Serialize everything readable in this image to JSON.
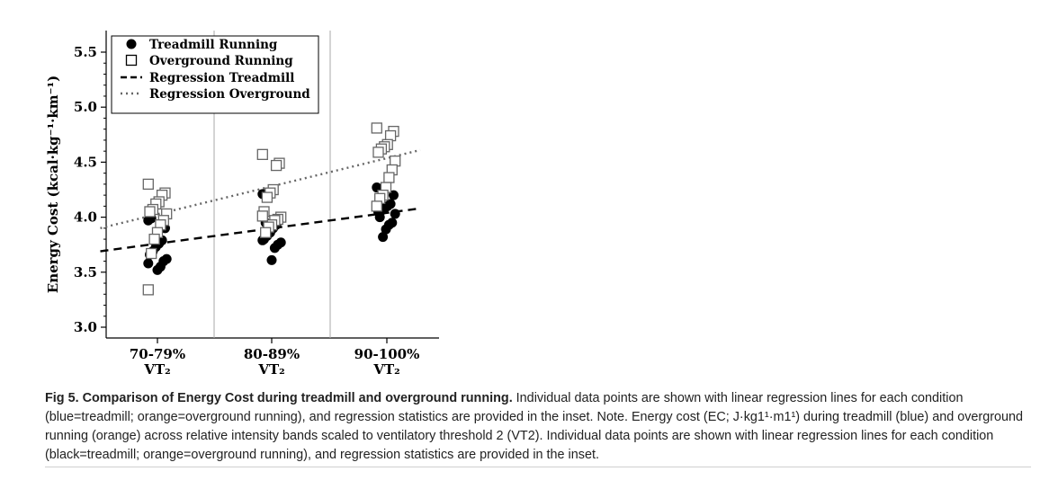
{
  "chart_data": {
    "type": "scatter",
    "ylabel": "Energy Cost (kcal·kg⁻¹·km⁻¹)",
    "xlabel": "",
    "ylim": [
      3.0,
      5.5
    ],
    "yticks": [
      "3.0",
      "3.5",
      "4.0",
      "4.5",
      "5.0",
      "5.5"
    ],
    "categories": [
      {
        "line1": "70-79%",
        "line2": "VT₂"
      },
      {
        "line1": "80-89%",
        "line2": "VT₂"
      },
      {
        "line1": "90-100%",
        "line2": "VT₂"
      }
    ],
    "legend": {
      "position": "top-left",
      "entries": [
        "Treadmill Running",
        "Overground Running",
        "Regression Treadmill",
        "Regression Overground"
      ]
    },
    "grid": false,
    "category_dividers": true,
    "series": [
      {
        "name": "Treadmill Running",
        "marker": "filled-circle",
        "color": "#000000",
        "points": [
          [
            0,
            3.97
          ],
          [
            0,
            3.9
          ],
          [
            0,
            3.79
          ],
          [
            0,
            3.76
          ],
          [
            0,
            3.73
          ],
          [
            0,
            3.69
          ],
          [
            0,
            3.66
          ],
          [
            0,
            3.62
          ],
          [
            0,
            3.6
          ],
          [
            0,
            3.55
          ],
          [
            0,
            3.52
          ],
          [
            0,
            3.8
          ],
          [
            0,
            3.99
          ],
          [
            0,
            3.58
          ]
        ]
      },
      {
        "name": "Overground Running",
        "marker": "open-square",
        "color": "#000000",
        "points": [
          [
            0,
            4.3
          ],
          [
            0,
            4.22
          ],
          [
            0,
            4.2
          ],
          [
            0,
            4.14
          ],
          [
            0,
            4.12
          ],
          [
            0,
            4.07
          ],
          [
            0,
            4.05
          ],
          [
            0,
            4.03
          ],
          [
            0,
            3.97
          ],
          [
            0,
            3.93
          ],
          [
            0,
            3.86
          ],
          [
            0,
            3.8
          ],
          [
            0,
            3.67
          ],
          [
            0,
            3.34
          ]
        ]
      },
      {
        "name": "Treadmill Running",
        "marker": "filled-circle",
        "color": "#000000",
        "points": [
          [
            1,
            4.21
          ],
          [
            1,
            3.98
          ],
          [
            1,
            3.93
          ],
          [
            1,
            3.9
          ],
          [
            1,
            3.86
          ],
          [
            1,
            3.83
          ],
          [
            1,
            3.8
          ],
          [
            1,
            3.77
          ],
          [
            1,
            3.75
          ],
          [
            1,
            3.72
          ],
          [
            1,
            3.61
          ],
          [
            1,
            3.88
          ],
          [
            1,
            3.95
          ],
          [
            1,
            3.79
          ]
        ]
      },
      {
        "name": "Overground Running",
        "marker": "open-square",
        "color": "#000000",
        "points": [
          [
            1,
            4.57
          ],
          [
            1,
            4.49
          ],
          [
            1,
            4.47
          ],
          [
            1,
            4.25
          ],
          [
            1,
            4.22
          ],
          [
            1,
            4.18
          ],
          [
            1,
            4.05
          ],
          [
            1,
            4.0
          ],
          [
            1,
            3.98
          ],
          [
            1,
            3.97
          ],
          [
            1,
            3.93
          ],
          [
            1,
            3.91
          ],
          [
            1,
            3.86
          ],
          [
            1,
            4.01
          ]
        ]
      },
      {
        "name": "Treadmill Running",
        "marker": "filled-circle",
        "color": "#000000",
        "points": [
          [
            2,
            4.27
          ],
          [
            2,
            4.2
          ],
          [
            2,
            4.12
          ],
          [
            2,
            4.1
          ],
          [
            2,
            4.08
          ],
          [
            2,
            4.06
          ],
          [
            2,
            4.05
          ],
          [
            2,
            4.03
          ],
          [
            2,
            3.95
          ],
          [
            2,
            3.93
          ],
          [
            2,
            3.89
          ],
          [
            2,
            3.82
          ],
          [
            2,
            4.0
          ],
          [
            2,
            4.09
          ]
        ]
      },
      {
        "name": "Overground Running",
        "marker": "open-square",
        "color": "#000000",
        "points": [
          [
            2,
            4.81
          ],
          [
            2,
            4.78
          ],
          [
            2,
            4.74
          ],
          [
            2,
            4.66
          ],
          [
            2,
            4.64
          ],
          [
            2,
            4.62
          ],
          [
            2,
            4.59
          ],
          [
            2,
            4.51
          ],
          [
            2,
            4.43
          ],
          [
            2,
            4.36
          ],
          [
            2,
            4.27
          ],
          [
            2,
            4.2
          ],
          [
            2,
            4.17
          ],
          [
            2,
            4.1
          ]
        ]
      }
    ],
    "regressions": [
      {
        "name": "Regression Treadmill",
        "style": "dashed",
        "x": [
          -0.5,
          2.3
        ],
        "y": [
          3.69,
          4.08
        ]
      },
      {
        "name": "Regression Overground",
        "style": "dotted",
        "x": [
          -0.5,
          2.3
        ],
        "y": [
          3.9,
          4.61
        ]
      }
    ]
  },
  "caption": {
    "bold": "Fig 5. Comparison of Energy Cost during treadmill and overground running.",
    "text": " Individual data points are shown with linear regression lines for each condition (blue=treadmill; orange=overground running), and regression statistics are provided in the inset. Note. Energy cost (EC; J·kg1¹·m1¹) during treadmill (blue) and overground running (orange) across relative intensity bands scaled to ventilatory threshold 2 (VT2). Individual data points are shown with linear regression lines for each condition (black=treadmill; orange=overground running), and regression statistics are provided in the inset."
  }
}
